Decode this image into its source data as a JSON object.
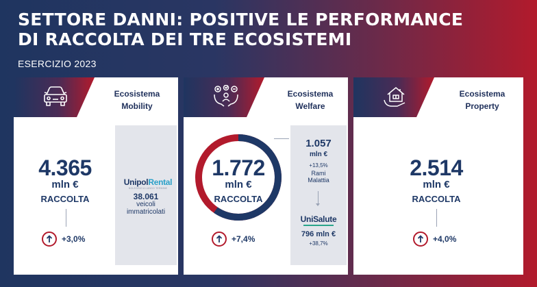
{
  "header": {
    "title_line1": "SETTORE DANNI: POSITIVE LE PERFORMANCE",
    "title_line2": "DI RACCOLTA DEI TRE ECOSISTEMI",
    "subtitle": "ESERCIZIO 2023"
  },
  "colors": {
    "navy": "#1e3866",
    "red": "#b21a2c",
    "panel_gray": "#e3e5eb"
  },
  "cards": [
    {
      "icon": "car-icon",
      "name_line1": "Ecosistema",
      "name_line2": "Mobility",
      "value": "4.365",
      "unit": "mln €",
      "label": "RACCOLTA",
      "growth": "+3,0%",
      "side": {
        "brand_part1": "Unipol",
        "brand_part2": "Rental",
        "brand_tagline": "NOLEGGIO A LUNGO TERMINE",
        "count": "38.061",
        "count_line1": "veicoli",
        "count_line2": "immatricolati"
      }
    },
    {
      "icon": "welfare-icon",
      "name_line1": "Ecosistema",
      "name_line2": "Welfare",
      "value": "1.772",
      "unit": "mln €",
      "label": "RACCOLTA",
      "growth": "+7,4%",
      "ring_share": 0.596,
      "side": {
        "top_value": "1.057",
        "top_unit": "mln €",
        "top_growth": "+13,5%",
        "top_line1": "Rami",
        "top_line2": "Malattia",
        "brand": "UniSalute",
        "bottom_value": "796 mln €",
        "bottom_growth": "+38,7%"
      }
    },
    {
      "icon": "house-icon",
      "name_line1": "Ecosistema",
      "name_line2": "Property",
      "value": "2.514",
      "unit": "mln €",
      "label": "RACCOLTA",
      "growth": "+4,0%"
    }
  ]
}
